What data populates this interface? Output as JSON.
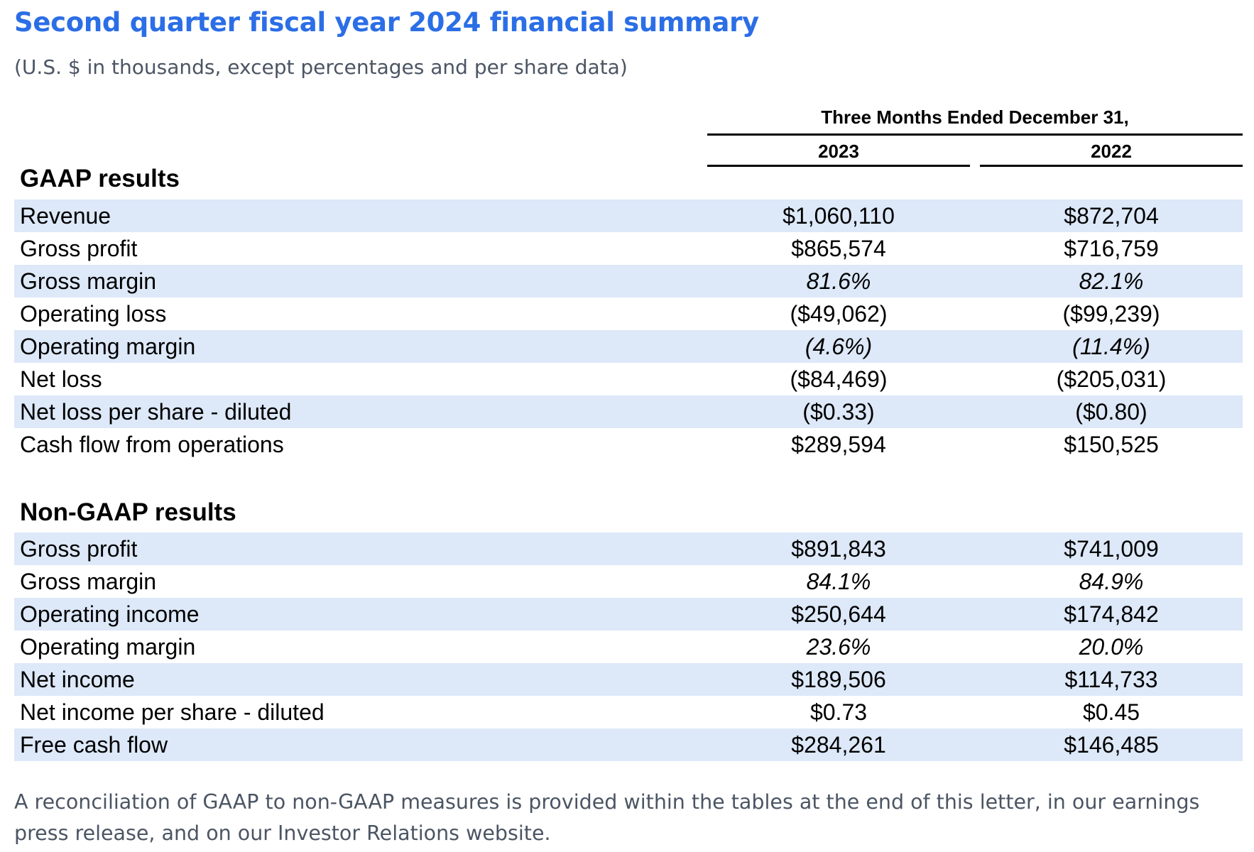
{
  "title": "Second quarter fiscal year 2024 financial summary",
  "subtitle": "(U.S. $ in thousands, except percentages and per share data)",
  "period_header": "Three Months Ended December 31,",
  "columns": [
    "2023",
    "2022"
  ],
  "gaap": {
    "title": "GAAP results",
    "rows": [
      {
        "label": "Revenue",
        "v2023": "$1,060,110",
        "v2022": "$872,704"
      },
      {
        "label": "Gross profit",
        "v2023": "$865,574",
        "v2022": "$716,759"
      },
      {
        "label": "Gross margin",
        "v2023": "81.6%",
        "v2022": "82.1%"
      },
      {
        "label": "Operating loss",
        "v2023": "($49,062)",
        "v2022": "($99,239)"
      },
      {
        "label": "Operating margin",
        "v2023": "(4.6%)",
        "v2022": "(11.4%)"
      },
      {
        "label": "Net loss",
        "v2023": "($84,469)",
        "v2022": "($205,031)"
      },
      {
        "label": "Net loss per share - diluted",
        "v2023": "($0.33)",
        "v2022": "($0.80)"
      },
      {
        "label": "Cash flow from operations",
        "v2023": "$289,594",
        "v2022": "$150,525"
      }
    ]
  },
  "non_gaap": {
    "title": "Non-GAAP results",
    "rows": [
      {
        "label": "Gross profit",
        "v2023": "$891,843",
        "v2022": "$741,009"
      },
      {
        "label": "Gross margin",
        "v2023": "84.1%",
        "v2022": "84.9%"
      },
      {
        "label": "Operating income",
        "v2023": "$250,644",
        "v2022": "$174,842"
      },
      {
        "label": "Operating margin",
        "v2023": "23.6%",
        "v2022": "20.0%"
      },
      {
        "label": "Net income",
        "v2023": "$189,506",
        "v2022": "$114,733"
      },
      {
        "label": "Net income per share - diluted",
        "v2023": "$0.73",
        "v2022": "$0.45"
      },
      {
        "label": "Free cash flow",
        "v2023": "$284,261",
        "v2022": "$146,485"
      }
    ]
  },
  "footnote": "A reconciliation of GAAP to non-GAAP measures is provided within the tables at the end of this letter, in our earnings press release, and on our Investor Relations website.",
  "colors": {
    "title": "#2b6ee6",
    "muted_text": "#4b5563",
    "row_shade": "#dde8f8"
  }
}
